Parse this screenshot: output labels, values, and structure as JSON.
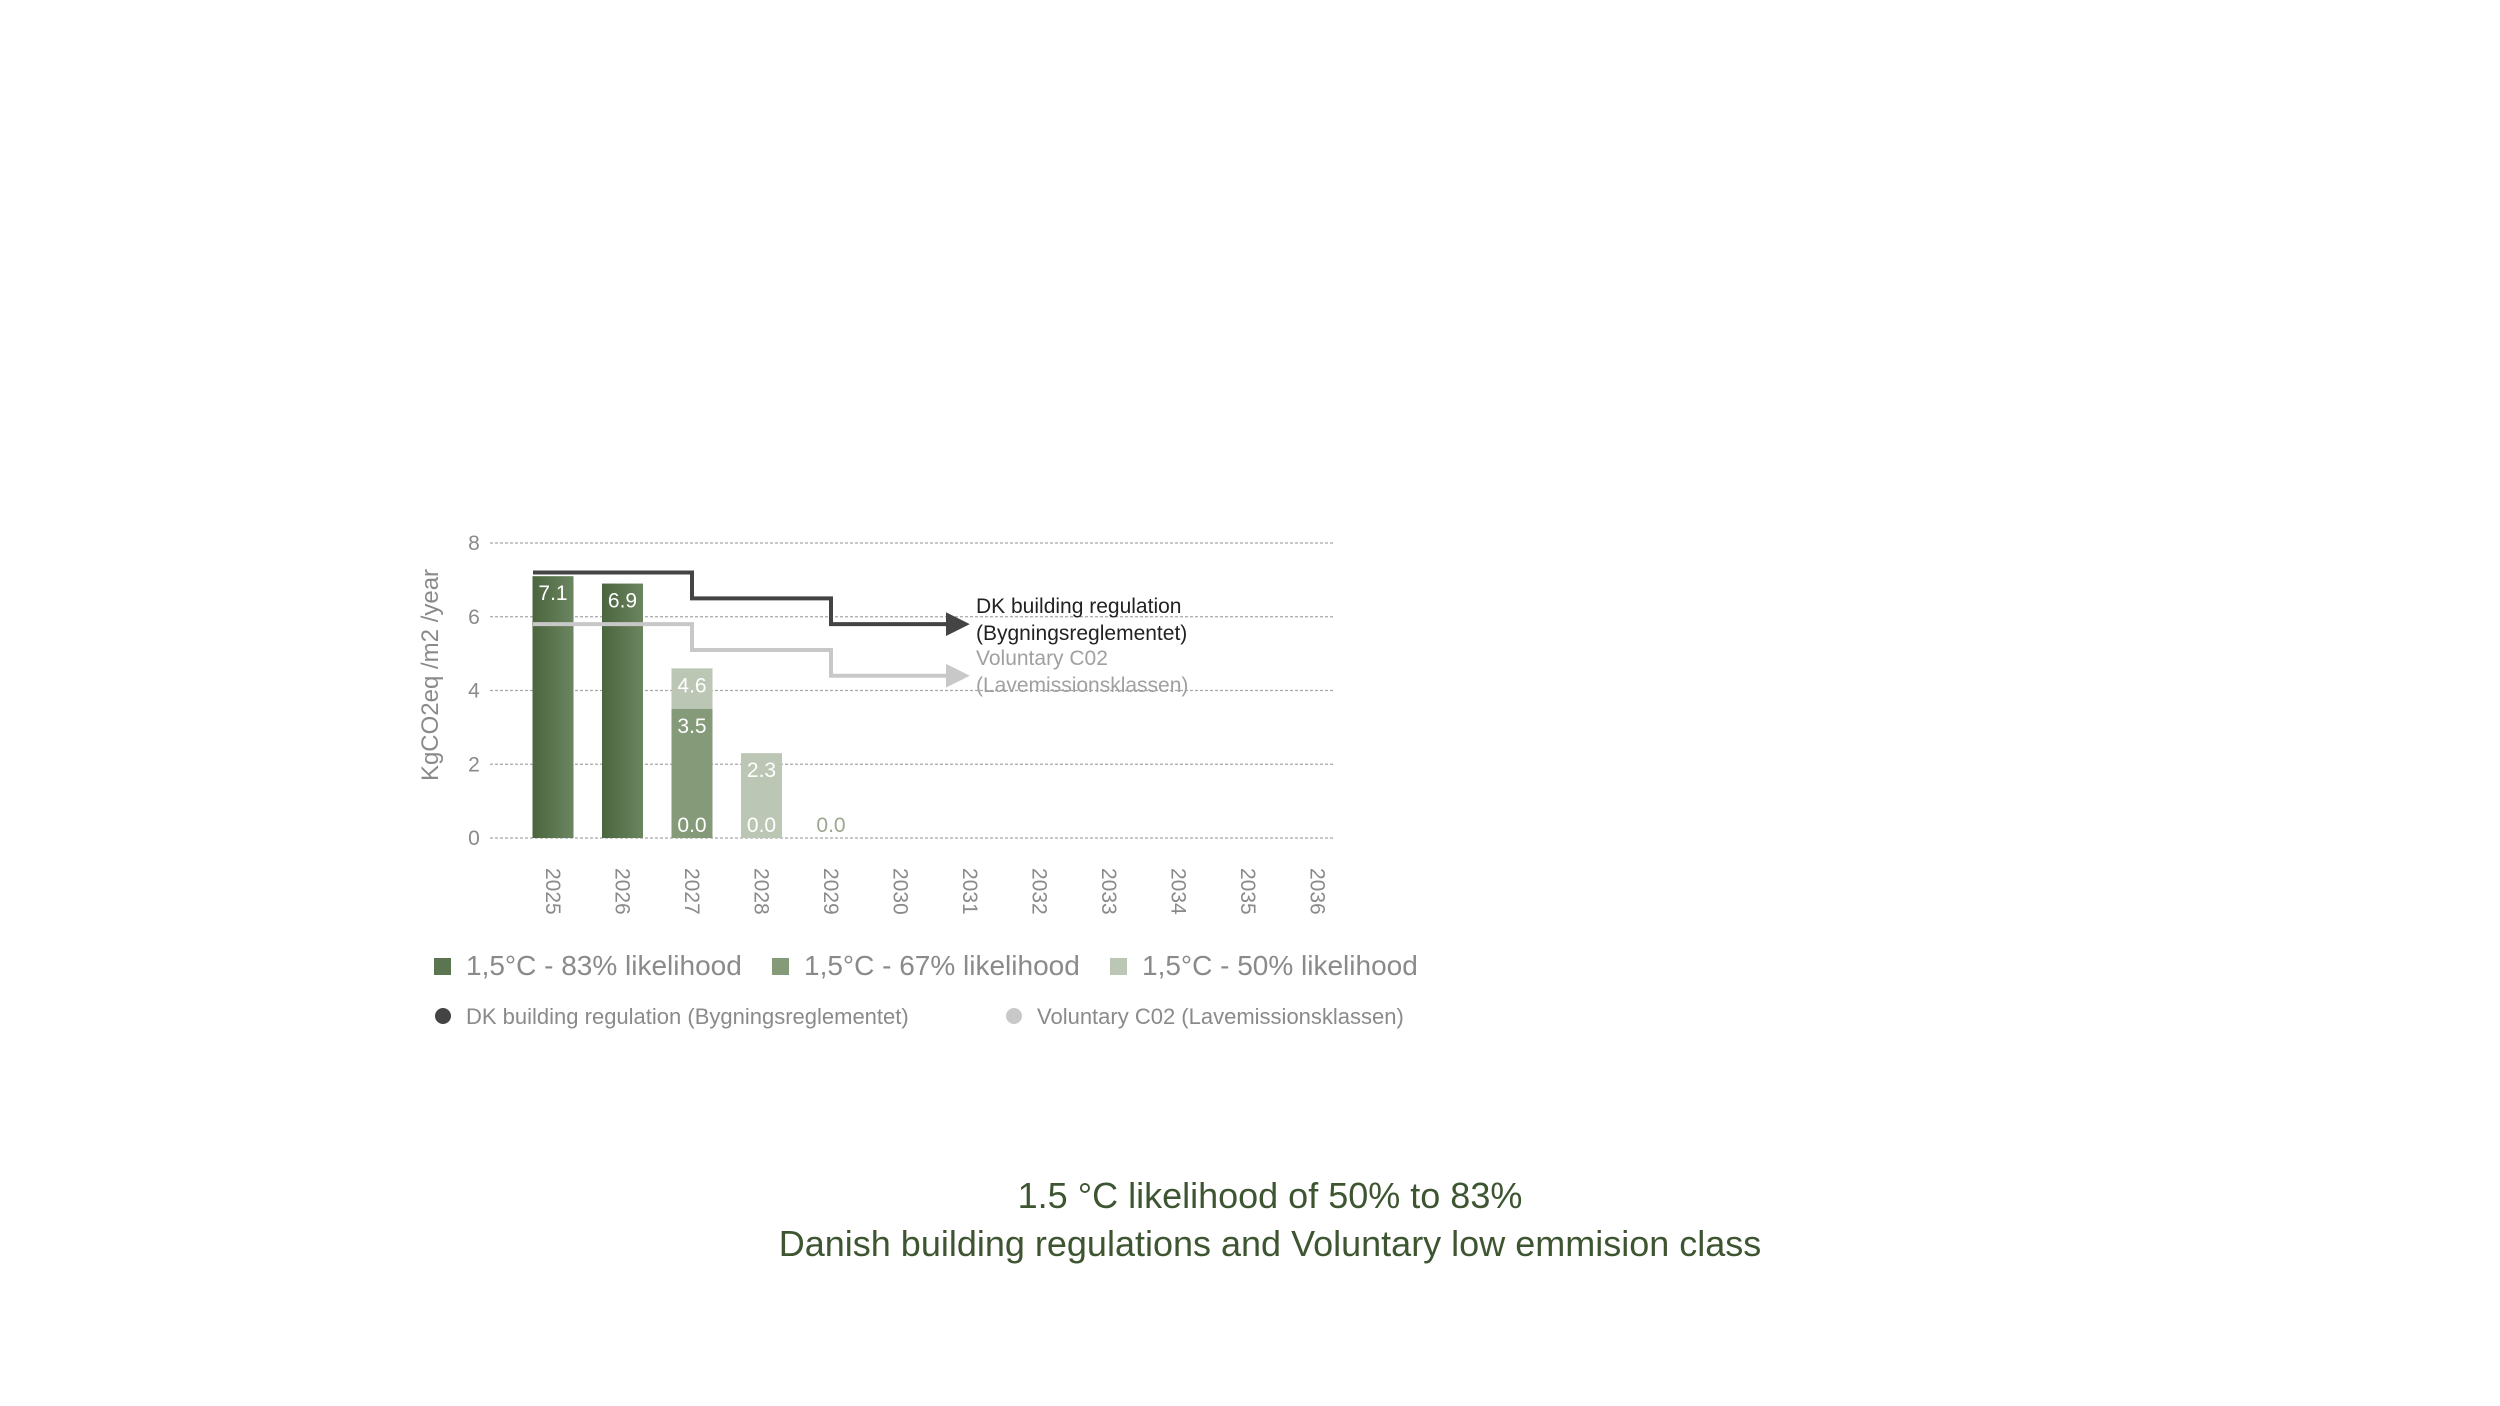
{
  "chart_data": {
    "type": "bar",
    "stacked": true,
    "title": "",
    "ylabel": "KgCO2eq /m2 /year",
    "xlabel": "",
    "ylim": [
      0,
      8
    ],
    "yticks": [
      0,
      2,
      4,
      6,
      8
    ],
    "grid": true,
    "categories": [
      "2025",
      "2026",
      "2027",
      "2028",
      "2029",
      "2030",
      "2031",
      "2032",
      "2033",
      "2034",
      "2035",
      "2036"
    ],
    "series": [
      {
        "name": "1,5°C - 83% likelihood",
        "color": "#5a7550",
        "values": [
          7.1,
          6.9,
          0.0,
          null,
          null,
          null,
          null,
          null,
          null,
          null,
          null,
          null
        ],
        "labels": [
          "7.1",
          "6.9",
          "0.0",
          null,
          null,
          null,
          null,
          null,
          null,
          null,
          null,
          null
        ]
      },
      {
        "name": "1,5°C - 67% likelihood",
        "color": "#849a78",
        "values": [
          null,
          null,
          3.5,
          0.0,
          null,
          null,
          null,
          null,
          null,
          null,
          null,
          null
        ],
        "labels": [
          null,
          null,
          "3.5",
          "0.0",
          null,
          null,
          null,
          null,
          null,
          null,
          null,
          null
        ]
      },
      {
        "name": "1,5°C - 50% likelihood",
        "color": "#bcc6b4",
        "values": [
          null,
          null,
          4.6,
          2.3,
          0.0,
          null,
          null,
          null,
          null,
          null,
          null,
          null
        ],
        "labels": [
          null,
          null,
          "4.6",
          "2.3",
          "0.0",
          null,
          null,
          null,
          null,
          null,
          null,
          null
        ]
      }
    ],
    "lines": [
      {
        "name": "DK building regulation (Bygningsreglementet)",
        "color": "#444444",
        "annotation": [
          "DK building regulation",
          "(Bygningsreglementet)"
        ],
        "steps": [
          {
            "from": "2025",
            "to": "2027",
            "value": 7.2
          },
          {
            "from": "2027",
            "to": "2029",
            "value": 6.5
          },
          {
            "from": "2029",
            "to": "2031",
            "value": 5.8
          }
        ]
      },
      {
        "name": "Voluntary C02 (Lavemissionsklassen)",
        "color": "#c8c8c8",
        "annotation": [
          "Voluntary C02",
          "(Lavemissionsklassen)"
        ],
        "steps": [
          {
            "from": "2025",
            "to": "2027",
            "value": 5.8
          },
          {
            "from": "2027",
            "to": "2029",
            "value": 5.1
          },
          {
            "from": "2029",
            "to": "2031",
            "value": 4.4
          }
        ]
      }
    ],
    "legend": {
      "placement": "bottom",
      "rows": [
        [
          "1,5°C - 83% likelihood",
          "1,5°C - 67% likelihood",
          "1,5°C - 50% likelihood"
        ],
        [
          "DK building regulation (Bygningsreglementet)",
          "Voluntary C02 (Lavemissionsklassen)"
        ]
      ]
    }
  },
  "caption": {
    "line1": "1.5 °C likelihood of 50% to 83%",
    "line2": "Danish building regulations and Voluntary low emmision class"
  }
}
